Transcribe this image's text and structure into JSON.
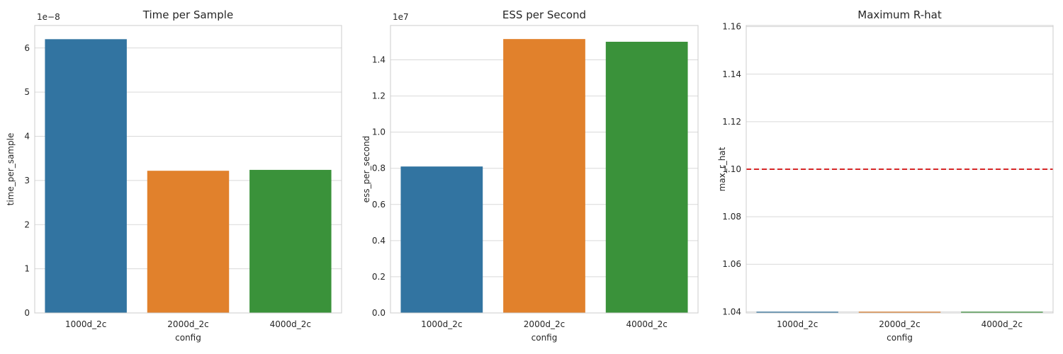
{
  "chart_data": [
    {
      "type": "bar",
      "title": "Time per Sample",
      "xlabel": "config",
      "ylabel": "time_per_sample",
      "categories": [
        "1000d_2c",
        "2000d_2c",
        "4000d_2c"
      ],
      "values": [
        6.2e-08,
        3.22e-08,
        3.24e-08
      ],
      "colors": [
        "#3274a1",
        "#e1812c",
        "#3a923a"
      ],
      "ylim": [
        0,
        6.51e-08
      ],
      "scale_label": "1e−8",
      "yticks": [
        0,
        1e-08,
        2e-08,
        3e-08,
        4e-08,
        5e-08,
        6e-08
      ],
      "ytick_labels": [
        "0",
        "1",
        "2",
        "3",
        "4",
        "5",
        "6"
      ],
      "grid": true,
      "legend": "none"
    },
    {
      "type": "bar",
      "title": "ESS per Second",
      "xlabel": "config",
      "ylabel": "ess_per_second",
      "categories": [
        "1000d_2c",
        "2000d_2c",
        "4000d_2c"
      ],
      "values": [
        8100000.0,
        15150000.0,
        15000000.0
      ],
      "colors": [
        "#3274a1",
        "#e1812c",
        "#3a923a"
      ],
      "ylim": [
        0,
        15900000.0
      ],
      "scale_label": "1e7",
      "yticks": [
        0,
        2000000.0,
        4000000.0,
        6000000.0,
        8000000.0,
        10000000.0,
        12000000.0,
        14000000.0
      ],
      "ytick_labels": [
        "0.0",
        "0.2",
        "0.4",
        "0.6",
        "0.8",
        "1.0",
        "1.2",
        "1.4"
      ],
      "grid": true,
      "legend": "none"
    },
    {
      "type": "bar",
      "title": "Maximum R-hat",
      "xlabel": "config",
      "ylabel": "max_r_hat",
      "categories": [
        "1000d_2c",
        "2000d_2c",
        "4000d_2c"
      ],
      "values": [
        1.04,
        1.04,
        1.04
      ],
      "colors": [
        "#3274a1",
        "#e1812c",
        "#3a923a"
      ],
      "ylim": [
        1.0395,
        1.1605
      ],
      "yticks": [
        1.04,
        1.06,
        1.08,
        1.1,
        1.12,
        1.14,
        1.16
      ],
      "ytick_labels": [
        "1.04",
        "1.06",
        "1.08",
        "1.10",
        "1.12",
        "1.14",
        "1.16"
      ],
      "reference_line": {
        "y": 1.1,
        "color": "#d62728",
        "style": "dashed"
      },
      "grid": true,
      "legend": "none"
    }
  ]
}
